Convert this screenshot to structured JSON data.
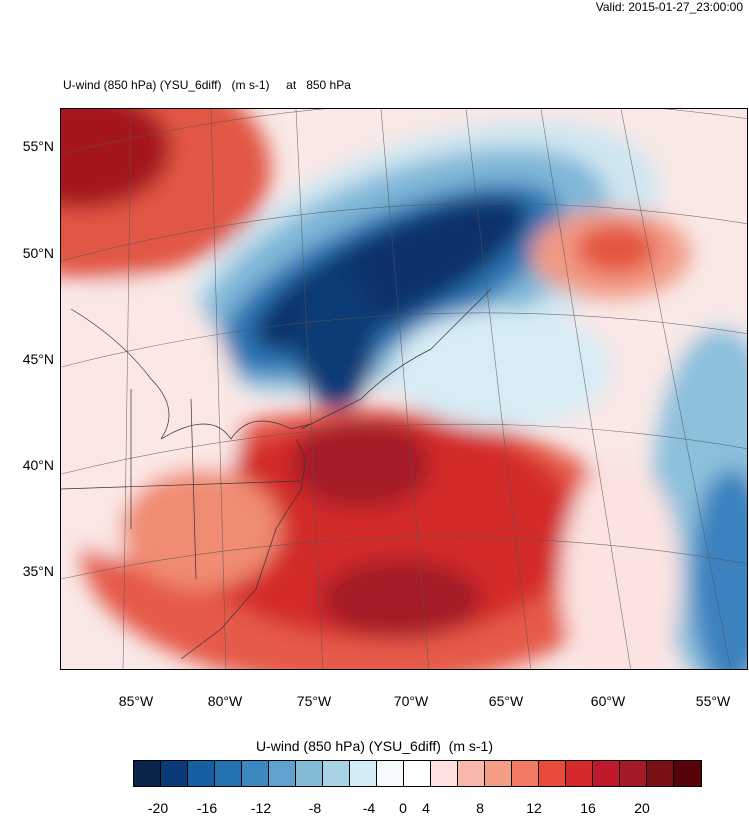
{
  "header": {
    "valid_text": "Valid: 2015-01-27_23:00:00",
    "title_text": "U-wind (850 hPa) (YSU_6diff)   (m s-1)     at   850 hPa"
  },
  "map": {
    "lat_labels": [
      "55°N",
      "50°N",
      "45°N",
      "40°N",
      "35°N"
    ],
    "lon_labels": [
      "85°W",
      "80°W",
      "75°W",
      "70°W",
      "65°W",
      "60°W",
      "55°W"
    ]
  },
  "colorbar": {
    "title": "U-wind (850 hPa) (YSU_6diff)  (m s-1)",
    "labels": [
      "-20",
      "-16",
      "-12",
      "-8",
      "-4",
      "0",
      "4",
      "8",
      "12",
      "16",
      "20"
    ],
    "colors": [
      "#08244a",
      "#0a3b78",
      "#155fa3",
      "#2373b3",
      "#3b89c0",
      "#5fa2ce",
      "#85bad9",
      "#a8d3e4",
      "#d3ecf6",
      "#f5fafc",
      "#ffffff",
      "#fde0df",
      "#f8b9ab",
      "#f59c85",
      "#f17b65",
      "#e94c3b",
      "#d42a2b",
      "#c0192b",
      "#a51a25",
      "#7a0f16",
      "#570408"
    ]
  }
}
